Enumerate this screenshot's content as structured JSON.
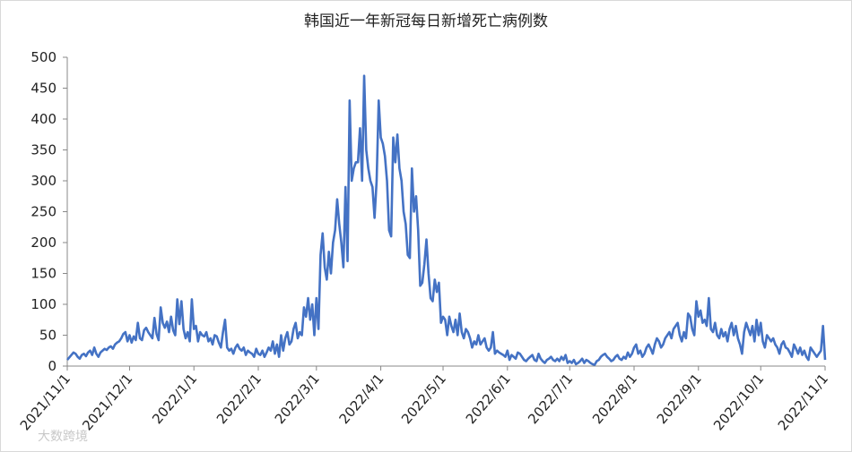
{
  "chart_data": {
    "type": "line",
    "title": "韩国近一年新冠每日新增死亡病例数",
    "watermark": "大数跨境",
    "categories": [
      "2021/11/1",
      null,
      null,
      null,
      null,
      null,
      null,
      null,
      null,
      null,
      null,
      null,
      null,
      null,
      null,
      null,
      null,
      null,
      null,
      null,
      null,
      null,
      null,
      null,
      null,
      null,
      null,
      null,
      null,
      null,
      "2021/12/1",
      null,
      null,
      null,
      null,
      null,
      null,
      null,
      null,
      null,
      null,
      null,
      null,
      null,
      null,
      null,
      null,
      null,
      null,
      null,
      null,
      null,
      null,
      null,
      null,
      null,
      null,
      null,
      null,
      null,
      null,
      "2022/1/1",
      null,
      null,
      null,
      null,
      null,
      null,
      null,
      null,
      null,
      null,
      null,
      null,
      null,
      null,
      null,
      null,
      null,
      null,
      null,
      null,
      null,
      null,
      null,
      null,
      null,
      null,
      null,
      null,
      null,
      null,
      "2022/2/1",
      null,
      null,
      null,
      null,
      null,
      null,
      null,
      null,
      null,
      null,
      null,
      null,
      null,
      null,
      null,
      null,
      null,
      null,
      null,
      null,
      null,
      null,
      null,
      null,
      null,
      null,
      null,
      "2022/3/1",
      null,
      null,
      null,
      null,
      null,
      null,
      null,
      null,
      null,
      null,
      null,
      null,
      null,
      null,
      null,
      null,
      null,
      null,
      null,
      null,
      null,
      null,
      null,
      null,
      null,
      null,
      null,
      null,
      null,
      null,
      "2022/4/1",
      null,
      null,
      null,
      null,
      null,
      null,
      null,
      null,
      null,
      null,
      null,
      null,
      null,
      null,
      null,
      null,
      null,
      null,
      null,
      null,
      null,
      null,
      null,
      null,
      null,
      null,
      null,
      null,
      null,
      "2022/5/1",
      null,
      null,
      null,
      null,
      null,
      null,
      null,
      null,
      null,
      null,
      null,
      null,
      null,
      null,
      null,
      null,
      null,
      null,
      null,
      null,
      null,
      null,
      null,
      null,
      null,
      null,
      null,
      null,
      null,
      null,
      "2022/6/1",
      null,
      null,
      null,
      null,
      null,
      null,
      null,
      null,
      null,
      null,
      null,
      null,
      null,
      null,
      null,
      null,
      null,
      null,
      null,
      null,
      null,
      null,
      null,
      null,
      null,
      null,
      null,
      null,
      null,
      "2022/7/1",
      null,
      null,
      null,
      null,
      null,
      null,
      null,
      null,
      null,
      null,
      null,
      null,
      null,
      null,
      null,
      null,
      null,
      null,
      null,
      null,
      null,
      null,
      null,
      null,
      null,
      null,
      null,
      null,
      null,
      null,
      "2022/8/1",
      null,
      null,
      null,
      null,
      null,
      null,
      null,
      null,
      null,
      null,
      null,
      null,
      null,
      null,
      null,
      null,
      null,
      null,
      null,
      null,
      null,
      null,
      null,
      null,
      null,
      null,
      null,
      null,
      null,
      null,
      "2022/9/1",
      null,
      null,
      null,
      null,
      null,
      null,
      null,
      null,
      null,
      null,
      null,
      null,
      null,
      null,
      null,
      null,
      null,
      null,
      null,
      null,
      null,
      null,
      null,
      null,
      null,
      null,
      null,
      null,
      null,
      "2022/10/1",
      null,
      null,
      null,
      null,
      null,
      null,
      null,
      null,
      null,
      null,
      null,
      null,
      null,
      null,
      null,
      null,
      null,
      null,
      null,
      null,
      null,
      null,
      null,
      null,
      null,
      null,
      null,
      null,
      null,
      null,
      "2022/11/1"
    ],
    "values": [
      10,
      14,
      18,
      22,
      20,
      15,
      12,
      18,
      20,
      16,
      22,
      25,
      18,
      30,
      20,
      15,
      22,
      25,
      28,
      26,
      30,
      32,
      28,
      35,
      38,
      40,
      45,
      52,
      55,
      40,
      50,
      38,
      48,
      42,
      70,
      45,
      42,
      58,
      62,
      55,
      50,
      45,
      78,
      52,
      42,
      95,
      70,
      62,
      72,
      55,
      80,
      58,
      50,
      108,
      68,
      105,
      60,
      45,
      55,
      40,
      108,
      60,
      65,
      40,
      55,
      50,
      48,
      55,
      40,
      45,
      35,
      50,
      48,
      38,
      30,
      55,
      75,
      30,
      25,
      28,
      20,
      30,
      35,
      28,
      25,
      30,
      18,
      25,
      22,
      20,
      15,
      28,
      20,
      18,
      25,
      15,
      22,
      30,
      25,
      40,
      20,
      35,
      15,
      50,
      25,
      45,
      55,
      35,
      40,
      60,
      70,
      45,
      55,
      50,
      95,
      80,
      110,
      75,
      100,
      50,
      110,
      60,
      180,
      215,
      160,
      140,
      185,
      150,
      200,
      220,
      270,
      230,
      200,
      160,
      290,
      170,
      430,
      300,
      320,
      330,
      330,
      385,
      300,
      470,
      350,
      320,
      300,
      290,
      240,
      300,
      430,
      370,
      360,
      340,
      300,
      220,
      210,
      370,
      330,
      375,
      320,
      300,
      250,
      230,
      180,
      175,
      320,
      250,
      275,
      220,
      130,
      135,
      165,
      205,
      150,
      110,
      105,
      140,
      120,
      135,
      70,
      80,
      75,
      50,
      80,
      65,
      55,
      75,
      50,
      85,
      55,
      45,
      60,
      55,
      45,
      30,
      40,
      35,
      50,
      35,
      40,
      45,
      30,
      25,
      30,
      55,
      20,
      25,
      22,
      20,
      18,
      15,
      25,
      10,
      18,
      15,
      12,
      22,
      20,
      15,
      10,
      8,
      12,
      15,
      18,
      10,
      8,
      20,
      12,
      8,
      5,
      10,
      12,
      15,
      10,
      8,
      12,
      8,
      15,
      10,
      18,
      5,
      8,
      5,
      10,
      3,
      5,
      8,
      12,
      5,
      10,
      8,
      5,
      3,
      2,
      8,
      10,
      15,
      18,
      20,
      15,
      12,
      8,
      10,
      15,
      18,
      12,
      10,
      15,
      12,
      22,
      15,
      20,
      30,
      35,
      20,
      25,
      15,
      20,
      30,
      35,
      28,
      20,
      35,
      45,
      40,
      30,
      35,
      45,
      50,
      55,
      45,
      60,
      65,
      70,
      50,
      40,
      55,
      45,
      85,
      80,
      60,
      50,
      105,
      80,
      90,
      70,
      75,
      65,
      110,
      60,
      55,
      70,
      50,
      45,
      60,
      48,
      55,
      40,
      60,
      70,
      50,
      65,
      45,
      35,
      20,
      55,
      70,
      60,
      50,
      65,
      40,
      75,
      50,
      70,
      40,
      30,
      50,
      45,
      40,
      45,
      35,
      30,
      20,
      35,
      40,
      30,
      28,
      22,
      15,
      35,
      28,
      20,
      30,
      18,
      25,
      15,
      10,
      30,
      25,
      20,
      15,
      20,
      25,
      65,
      10
    ],
    "color": "#4472c4",
    "ylim": [
      0,
      500
    ],
    "yticks": [
      0,
      50,
      100,
      150,
      200,
      250,
      300,
      350,
      400,
      450,
      500
    ],
    "grid": false
  }
}
